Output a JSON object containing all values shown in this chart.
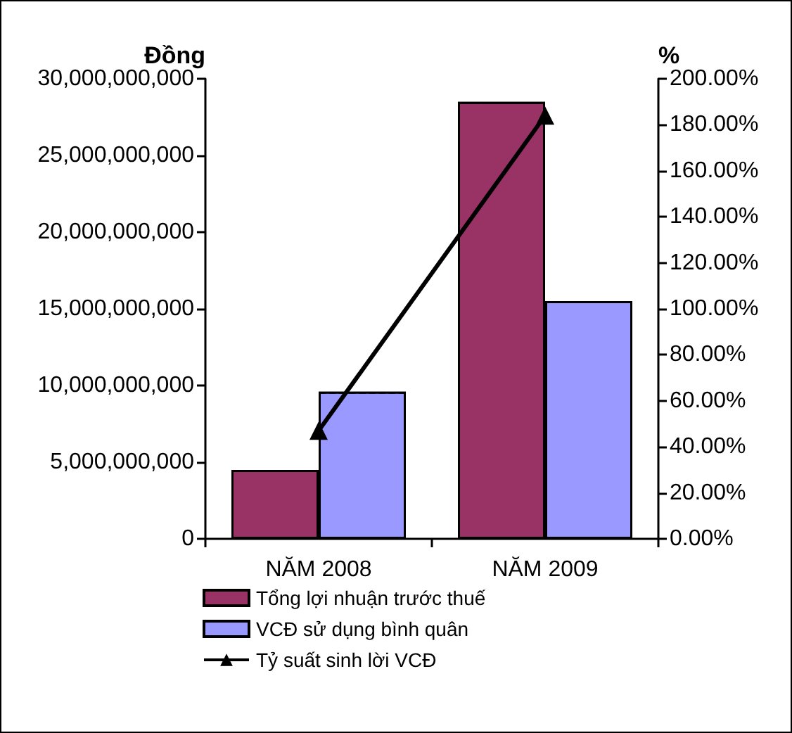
{
  "chart_data": {
    "type": "bar",
    "categories": [
      "NĂM 2008",
      "NĂM 2009"
    ],
    "ylabel": "Đồng",
    "y2label": "%",
    "series": [
      {
        "name": "Tổng lợi nhuận trước thuế",
        "color": "#993366",
        "values": [
          4500000000,
          28500000000
        ]
      },
      {
        "name": "VCĐ sử dụng bình quân",
        "color": "#9999ff",
        "values": [
          9600000000,
          15500000000
        ]
      },
      {
        "name": "Tỷ suất sinh lời VCĐ",
        "type": "line",
        "axis": "y2",
        "color": "#000000",
        "values": [
          47,
          184
        ]
      }
    ],
    "ylim": [
      0,
      30000000000
    ],
    "yticks": [
      0,
      {
        "value": 5000000000,
        "label": "5,000,000,000"
      },
      {
        "value": 10000000000,
        "label": "10,000,000,000"
      },
      {
        "value": 15000000000,
        "label": "15,000,000,000"
      },
      {
        "value": 20000000000,
        "label": "20,000,000,000"
      },
      {
        "value": 25000000000,
        "label": "25,000,000,000"
      },
      {
        "value": 30000000000,
        "label": "30,000,000,000"
      }
    ],
    "y2lim": [
      0,
      200
    ],
    "y2ticks": [
      {
        "value": 0,
        "label": "0.00%"
      },
      {
        "value": 20,
        "label": "20.00%"
      },
      {
        "value": 40,
        "label": "40.00%"
      },
      {
        "value": 60,
        "label": "60.00%"
      },
      {
        "value": 80,
        "label": "80.00%"
      },
      {
        "value": 100,
        "label": "100.00%"
      },
      {
        "value": 120,
        "label": "120.00%"
      },
      {
        "value": 140,
        "label": "140.00%"
      },
      {
        "value": 160,
        "label": "160.00%"
      },
      {
        "value": 180,
        "label": "180.00%"
      },
      {
        "value": 200,
        "label": "200.00%"
      }
    ],
    "marker": "triangle",
    "legend": "bottom",
    "grid": false
  }
}
